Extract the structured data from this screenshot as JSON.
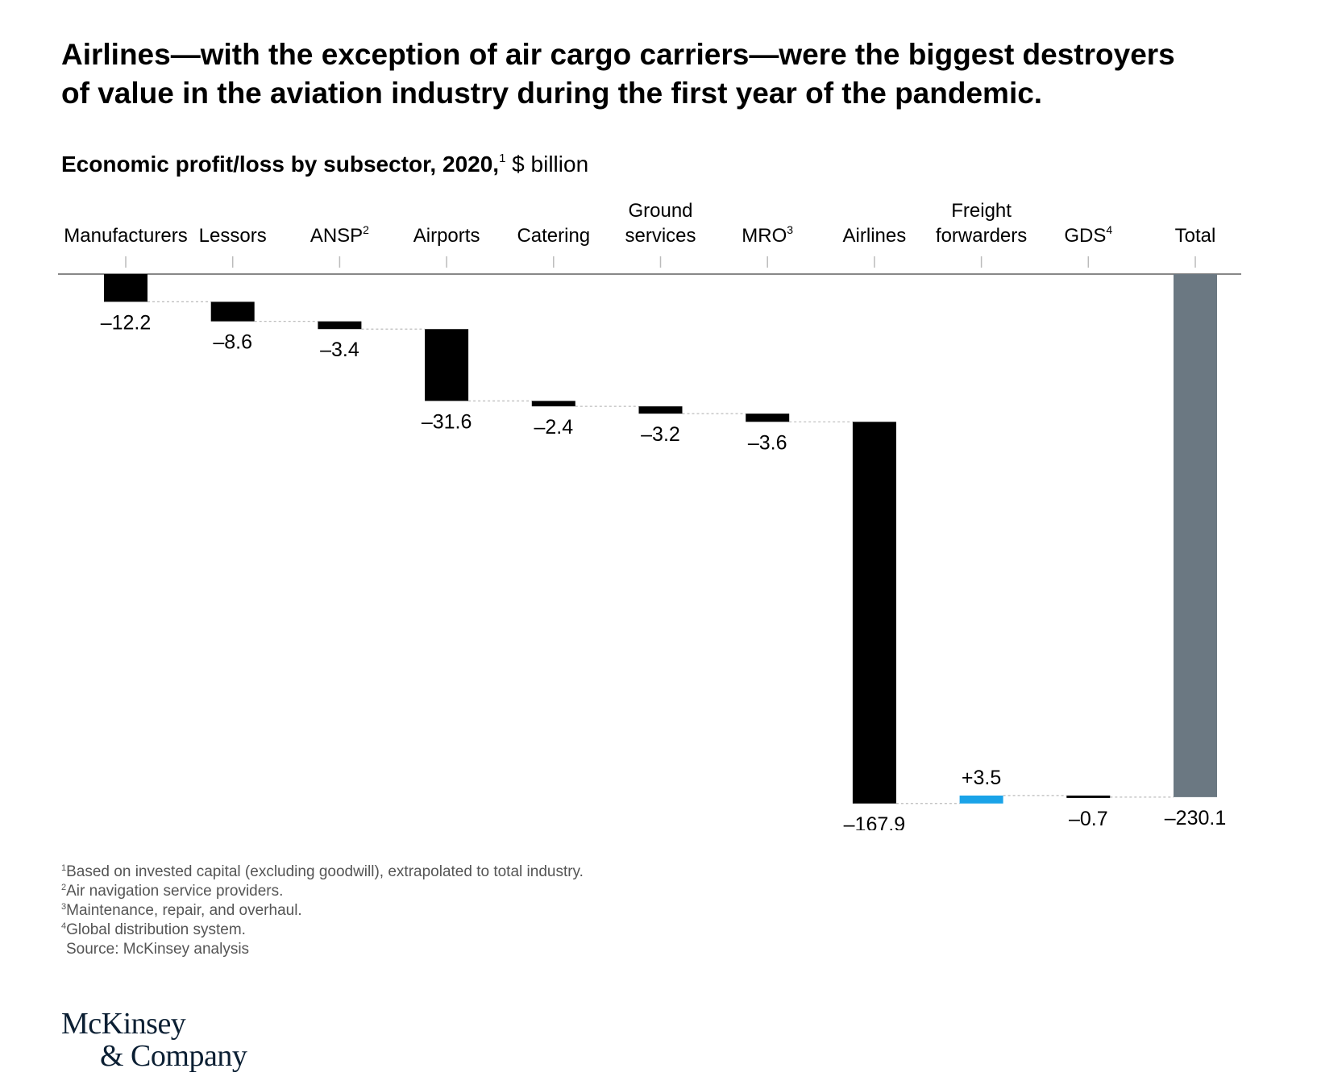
{
  "headline": {
    "line1": "Airlines—with the exception of air cargo carriers—were the biggest destroyers",
    "line2": "of value in the aviation industry during the first year of the pandemic."
  },
  "subtitle": {
    "bold": "Economic profit/loss by subsector, 2020,",
    "sup": "1",
    "unit": " $ billion"
  },
  "chart_data": {
    "type": "waterfall",
    "title": "Economic profit/loss by subsector, 2020,",
    "unit": "$ billion",
    "categories": [
      {
        "name": "Manufacturers",
        "lines": [
          "Manufacturers"
        ],
        "sup": "",
        "value": -12.2,
        "label": "–12.2",
        "kind": "negative"
      },
      {
        "name": "Lessors",
        "lines": [
          "Lessors"
        ],
        "sup": "",
        "value": -8.6,
        "label": "–8.6",
        "kind": "negative"
      },
      {
        "name": "ANSP",
        "lines": [
          "ANSP"
        ],
        "sup": "2",
        "value": -3.4,
        "label": "–3.4",
        "kind": "negative"
      },
      {
        "name": "Airports",
        "lines": [
          "Airports"
        ],
        "sup": "",
        "value": -31.6,
        "label": "–31.6",
        "kind": "negative"
      },
      {
        "name": "Catering",
        "lines": [
          "Catering"
        ],
        "sup": "",
        "value": -2.4,
        "label": "–2.4",
        "kind": "negative"
      },
      {
        "name": "Ground services",
        "lines": [
          "Ground",
          "services"
        ],
        "sup": "",
        "value": -3.2,
        "label": "–3.2",
        "kind": "negative"
      },
      {
        "name": "MRO",
        "lines": [
          "MRO"
        ],
        "sup": "3",
        "value": -3.6,
        "label": "–3.6",
        "kind": "negative"
      },
      {
        "name": "Airlines",
        "lines": [
          "Airlines"
        ],
        "sup": "",
        "value": -167.9,
        "label": "–167.9",
        "kind": "negative"
      },
      {
        "name": "Freight forwarders",
        "lines": [
          "Freight",
          "forwarders"
        ],
        "sup": "",
        "value": 3.5,
        "label": "+3.5",
        "kind": "positive"
      },
      {
        "name": "GDS",
        "lines": [
          "GDS"
        ],
        "sup": "4",
        "value": -0.7,
        "label": "–0.7",
        "kind": "negative"
      },
      {
        "name": "Total",
        "lines": [
          "Total"
        ],
        "sup": "",
        "value": -230.1,
        "label": "–230.1",
        "kind": "total"
      }
    ],
    "colors": {
      "negative": "#000000",
      "positive": "#1aa3e8",
      "total": "#6b7882"
    }
  },
  "footnotes": [
    {
      "sup": "1",
      "text": "Based on invested capital (excluding goodwill), extrapolated to total industry."
    },
    {
      "sup": "2",
      "text": "Air navigation service providers."
    },
    {
      "sup": "3",
      "text": "Maintenance, repair, and overhaul."
    },
    {
      "sup": "4",
      "text": "Global distribution system."
    }
  ],
  "source": "Source: McKinsey analysis",
  "logo": {
    "line1": "McKinsey",
    "line2": "& Company"
  }
}
